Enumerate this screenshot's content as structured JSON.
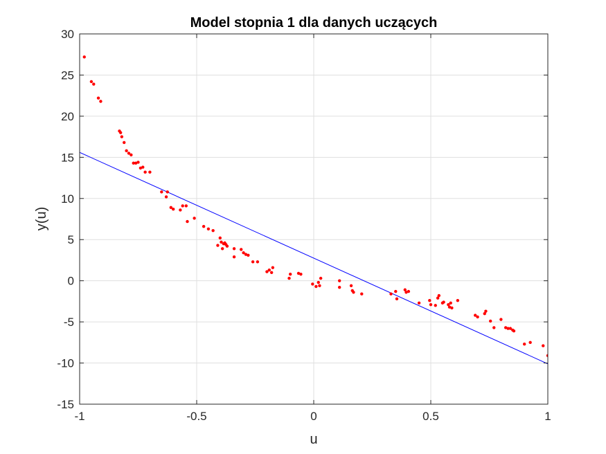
{
  "chart_data": {
    "type": "scatter",
    "title": "Model stopnia 1 dla danych uczących",
    "xlabel": "u",
    "ylabel": "y(u)",
    "xlim": [
      -1,
      1
    ],
    "ylim": [
      -15,
      30
    ],
    "xticks": [
      -1,
      -0.5,
      0,
      0.5,
      1
    ],
    "xtick_labels": [
      "-1",
      "-0.5",
      "0",
      "0.5",
      "1"
    ],
    "yticks": [
      -15,
      -10,
      -5,
      0,
      5,
      10,
      15,
      20,
      25,
      30
    ],
    "ytick_labels": [
      "-15",
      "-10",
      "-5",
      "0",
      "5",
      "10",
      "15",
      "20",
      "25",
      "30"
    ],
    "grid": true,
    "legend": "none",
    "series": [
      {
        "kind": "scatter",
        "color": "#ff0000",
        "x": [
          -0.98,
          -0.95,
          -0.94,
          -0.92,
          -0.91,
          -0.83,
          -0.825,
          -0.82,
          -0.81,
          -0.8,
          -0.79,
          -0.78,
          -0.77,
          -0.76,
          -0.75,
          -0.74,
          -0.73,
          -0.72,
          -0.7,
          -0.65,
          -0.63,
          -0.625,
          -0.61,
          -0.6,
          -0.57,
          -0.56,
          -0.545,
          -0.54,
          -0.51,
          -0.47,
          -0.45,
          -0.43,
          -0.41,
          -0.4,
          -0.395,
          -0.39,
          -0.385,
          -0.38,
          -0.375,
          -0.37,
          -0.34,
          -0.34,
          -0.31,
          -0.3,
          -0.29,
          -0.28,
          -0.26,
          -0.24,
          -0.2,
          -0.19,
          -0.18,
          -0.175,
          -0.105,
          -0.1,
          -0.065,
          -0.055,
          -0.005,
          0.01,
          0.02,
          0.025,
          0.03,
          0.11,
          0.11,
          0.16,
          0.165,
          0.17,
          0.205,
          0.33,
          0.35,
          0.355,
          0.39,
          0.395,
          0.405,
          0.45,
          0.495,
          0.5,
          0.52,
          0.53,
          0.535,
          0.55,
          0.555,
          0.575,
          0.58,
          0.585,
          0.59,
          0.615,
          0.69,
          0.7,
          0.73,
          0.735,
          0.755,
          0.77,
          0.8,
          0.82,
          0.83,
          0.84,
          0.85,
          0.855,
          0.9,
          0.925,
          0.98,
          1.0
        ],
        "y": [
          27.2,
          24.2,
          23.9,
          22.2,
          21.8,
          18.2,
          18.0,
          17.5,
          16.8,
          15.8,
          15.5,
          15.3,
          14.3,
          14.3,
          14.4,
          13.7,
          13.8,
          13.2,
          13.2,
          10.8,
          10.2,
          10.8,
          8.9,
          8.7,
          8.6,
          9.1,
          9.1,
          7.2,
          7.6,
          6.6,
          6.3,
          6.1,
          4.3,
          5.2,
          4.7,
          3.9,
          4.5,
          4.6,
          4.4,
          4.2,
          3.9,
          2.9,
          3.8,
          3.4,
          3.2,
          3.1,
          2.3,
          2.3,
          1.1,
          1.3,
          1.0,
          1.6,
          0.3,
          0.8,
          0.9,
          0.8,
          -0.4,
          -0.7,
          -0.2,
          -0.6,
          0.3,
          0.0,
          -0.8,
          -0.6,
          -1.2,
          -1.4,
          -1.6,
          -1.6,
          -1.3,
          -2.2,
          -1.1,
          -1.4,
          -1.3,
          -2.7,
          -2.4,
          -2.9,
          -3.0,
          -2.1,
          -1.8,
          -2.7,
          -2.6,
          -2.9,
          -3.2,
          -2.7,
          -3.3,
          -2.4,
          -4.2,
          -4.4,
          -4.0,
          -3.7,
          -4.9,
          -5.7,
          -4.7,
          -5.7,
          -5.8,
          -5.8,
          -6.0,
          -6.1,
          -7.7,
          -7.5,
          -7.9,
          -9.1
        ]
      },
      {
        "kind": "line",
        "color": "#0000ff",
        "x": [
          -1,
          1
        ],
        "y": [
          15.6,
          -10.1
        ]
      }
    ]
  }
}
